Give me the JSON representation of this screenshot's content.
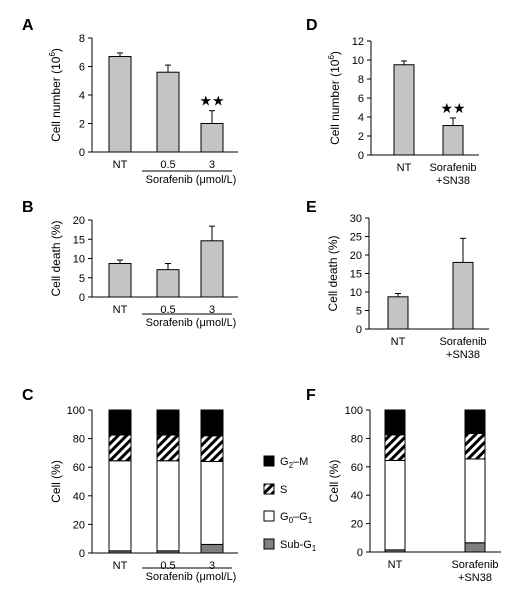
{
  "panels": [
    {
      "letter": "A",
      "type": "bar",
      "ylabel": "Cell number (10",
      "ylabel_sup": "6",
      "ylabel_end": ")",
      "ylim": [
        0,
        8
      ],
      "yticks": [
        0,
        2,
        4,
        6,
        8
      ],
      "categories": [
        "NT",
        "0.5",
        "3"
      ],
      "values": [
        6.7,
        5.6,
        2.0
      ],
      "errors": [
        0.25,
        0.5,
        0.9
      ],
      "markers": [
        "",
        "",
        "★★"
      ],
      "group_label": "Sorafenib (μmol/L)",
      "group_cats": [
        1,
        2
      ]
    },
    {
      "letter": "B",
      "type": "bar",
      "ylabel": "Cell death (%)",
      "ylim": [
        0,
        20
      ],
      "yticks": [
        0,
        5,
        10,
        15,
        20
      ],
      "categories": [
        "NT",
        "0.5",
        "3"
      ],
      "values": [
        8.7,
        7.1,
        14.6
      ],
      "errors": [
        0.9,
        1.6,
        3.8
      ],
      "markers": [
        "",
        "",
        ""
      ],
      "group_label": "Sorafenib (μmol/L)",
      "group_cats": [
        1,
        2
      ]
    },
    {
      "letter": "C",
      "type": "stacked",
      "ylabel": "Cell (%)",
      "ylim": [
        0,
        100
      ],
      "yticks": [
        0,
        20,
        40,
        60,
        80,
        100
      ],
      "categories": [
        "NT",
        "0.5",
        "3"
      ],
      "stack": {
        "sub_g1": [
          1.5,
          1.5,
          6
        ],
        "g0_g1": [
          63,
          63,
          58
        ],
        "s": [
          18,
          18,
          18
        ],
        "g2_m": [
          17.5,
          17.5,
          18
        ]
      },
      "group_label": "Sorafenib (μmol/L)",
      "group_cats": [
        1,
        2
      ]
    },
    {
      "letter": "D",
      "type": "bar",
      "ylabel": "Cell number (10",
      "ylabel_sup": "6",
      "ylabel_end": ")",
      "ylim": [
        0,
        12
      ],
      "yticks": [
        0,
        2,
        4,
        6,
        8,
        10,
        12
      ],
      "categories": [
        "NT",
        "Sorafenib\n+SN38"
      ],
      "values": [
        9.5,
        3.1
      ],
      "errors": [
        0.4,
        0.8
      ],
      "markers": [
        "",
        "★★"
      ]
    },
    {
      "letter": "E",
      "type": "bar",
      "ylabel": "Cell death (%)",
      "ylim": [
        0,
        30
      ],
      "yticks": [
        0,
        5,
        10,
        15,
        20,
        25,
        30
      ],
      "categories": [
        "NT",
        "Sorafenib\n+SN38"
      ],
      "values": [
        8.7,
        18.0
      ],
      "errors": [
        0.9,
        6.5
      ],
      "markers": [
        "",
        ""
      ]
    },
    {
      "letter": "F",
      "type": "stacked",
      "ylabel": "Cell (%)",
      "ylim": [
        0,
        100
      ],
      "yticks": [
        0,
        20,
        40,
        60,
        80,
        100
      ],
      "categories": [
        "NT",
        "Sorafenib\n+SN38"
      ],
      "stack": {
        "sub_g1": [
          1.5,
          6.5
        ],
        "g0_g1": [
          63,
          59
        ],
        "s": [
          18,
          18
        ],
        "g2_m": [
          17.5,
          16.5
        ]
      }
    }
  ],
  "legend": {
    "items": [
      {
        "key": "g2_m",
        "main": "G",
        "sub": "2",
        "rest": "–M"
      },
      {
        "key": "s",
        "main": "S",
        "sub": "",
        "rest": ""
      },
      {
        "key": "g0_g1",
        "main": "G",
        "sub": "0",
        "rest": "–G",
        "sub2": "1"
      },
      {
        "key": "sub_g1",
        "main": "Sub-G",
        "sub": "1",
        "rest": ""
      }
    ]
  },
  "colors": {
    "bar": "#c4c4c4",
    "g2_m": "#000000",
    "s_stripe": "#000000",
    "g0_g1": "#ffffff",
    "sub_g1": "#7f7f7f"
  }
}
